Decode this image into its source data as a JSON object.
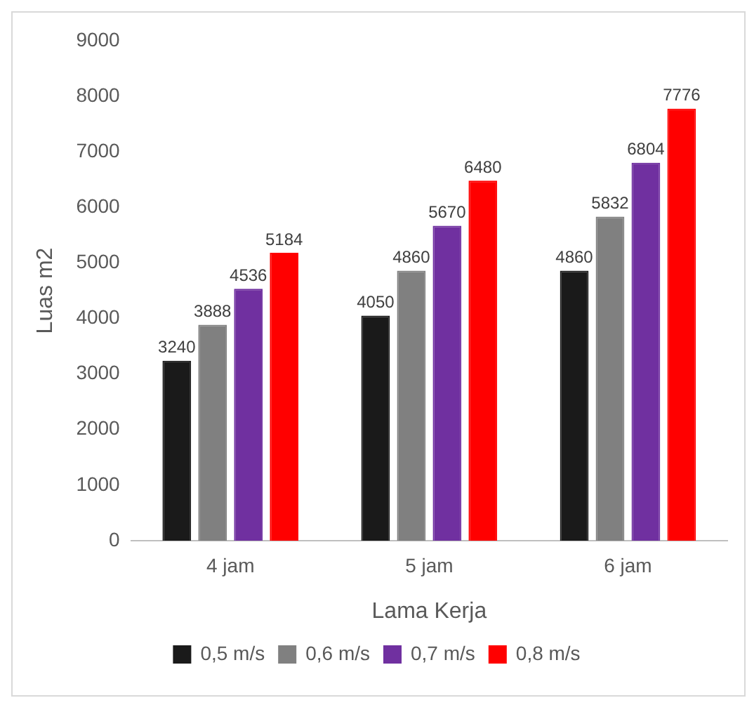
{
  "chart_data": {
    "type": "bar",
    "xlabel": "Lama Kerja",
    "ylabel": "Luas m2",
    "categories": [
      "4 jam",
      "5 jam",
      "6 jam"
    ],
    "series": [
      {
        "name": "0,5 m/s",
        "color": "#1a1a1a",
        "values": [
          3240,
          4050,
          4860
        ]
      },
      {
        "name": "0,6 m/s",
        "color": "#808080",
        "values": [
          3888,
          4860,
          5832
        ]
      },
      {
        "name": "0,7 m/s",
        "color": "#7030a0",
        "values": [
          4536,
          5670,
          6804
        ]
      },
      {
        "name": "0,8 m/s",
        "color": "#ff0000",
        "values": [
          5184,
          6480,
          7776
        ]
      }
    ],
    "ylim": [
      0,
      9000
    ],
    "yticks": [
      0,
      1000,
      2000,
      3000,
      4000,
      5000,
      6000,
      7000,
      8000,
      9000
    ],
    "data_labels": true,
    "grid": false,
    "legend": "bottom"
  }
}
